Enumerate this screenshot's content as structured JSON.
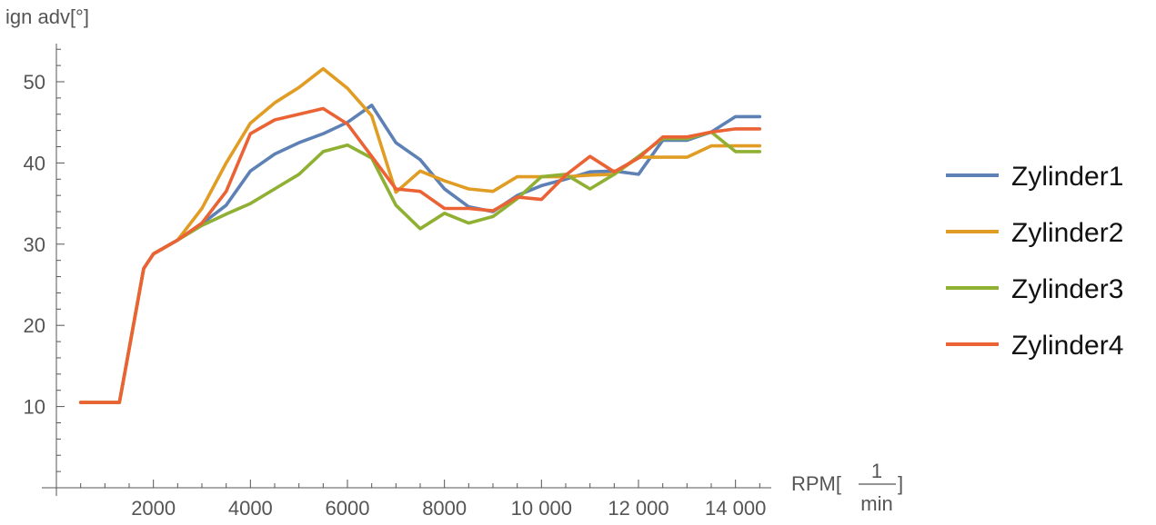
{
  "chart_data": {
    "type": "line",
    "title": "",
    "ylabel": "ign adv[°]",
    "xlabel": {
      "prefix": "RPM[",
      "numerator": "1",
      "denominator": "min",
      "suffix": "]"
    },
    "xlim": [
      0,
      15000
    ],
    "ylim": [
      0,
      55
    ],
    "xticks": [
      2000,
      4000,
      6000,
      8000,
      10000,
      12000,
      14000
    ],
    "xtick_labels": [
      "2000",
      "4000",
      "6000",
      "8000",
      "10 000",
      "12 000",
      "14 000"
    ],
    "yticks": [
      10,
      20,
      30,
      40,
      50
    ],
    "ytick_labels": [
      "10",
      "20",
      "30",
      "40",
      "50"
    ],
    "grid": false,
    "legend_position": "right",
    "x": [
      500,
      1000,
      1300,
      1800,
      2000,
      2500,
      3000,
      3500,
      4000,
      4500,
      5000,
      5500,
      6000,
      6500,
      7000,
      7500,
      8000,
      8500,
      9000,
      9500,
      10000,
      10500,
      11000,
      11500,
      12000,
      12500,
      13000,
      13500,
      14000,
      14500
    ],
    "series": [
      {
        "name": "Zylinder1",
        "color": "#5e81b5",
        "values": [
          10.5,
          10.5,
          10.5,
          27.0,
          28.8,
          30.5,
          32.5,
          34.8,
          39.0,
          41.1,
          42.5,
          43.6,
          45.0,
          47.1,
          42.5,
          40.4,
          36.8,
          34.6,
          34.0,
          36.0,
          37.2,
          38.0,
          38.9,
          39.0,
          38.6,
          42.8,
          42.8,
          43.8,
          45.7,
          45.7
        ]
      },
      {
        "name": "Zylinder2",
        "color": "#e19c24",
        "values": [
          10.5,
          10.5,
          10.5,
          27.0,
          28.8,
          30.5,
          34.4,
          40.0,
          44.9,
          47.4,
          49.3,
          51.6,
          49.2,
          45.8,
          36.4,
          39.0,
          37.8,
          36.8,
          36.5,
          38.3,
          38.3,
          38.3,
          38.5,
          38.6,
          40.7,
          40.7,
          40.7,
          42.1,
          42.1,
          42.1
        ]
      },
      {
        "name": "Zylinder3",
        "color": "#8fb032",
        "values": [
          10.5,
          10.5,
          10.5,
          27.0,
          28.8,
          30.5,
          32.3,
          33.7,
          35.0,
          36.8,
          38.6,
          41.4,
          42.2,
          40.6,
          34.8,
          31.9,
          33.8,
          32.6,
          33.4,
          35.6,
          38.3,
          38.6,
          36.8,
          38.6,
          40.8,
          43.0,
          43.0,
          43.8,
          41.4,
          41.4
        ]
      },
      {
        "name": "Zylinder4",
        "color": "#eb6235",
        "values": [
          10.5,
          10.5,
          10.5,
          27.0,
          28.8,
          30.5,
          32.6,
          36.5,
          43.6,
          45.3,
          46.0,
          46.7,
          44.8,
          40.8,
          36.8,
          36.5,
          34.4,
          34.4,
          34.1,
          35.8,
          35.5,
          38.5,
          40.8,
          38.9,
          40.6,
          43.2,
          43.2,
          43.8,
          44.2,
          44.2
        ]
      }
    ]
  }
}
